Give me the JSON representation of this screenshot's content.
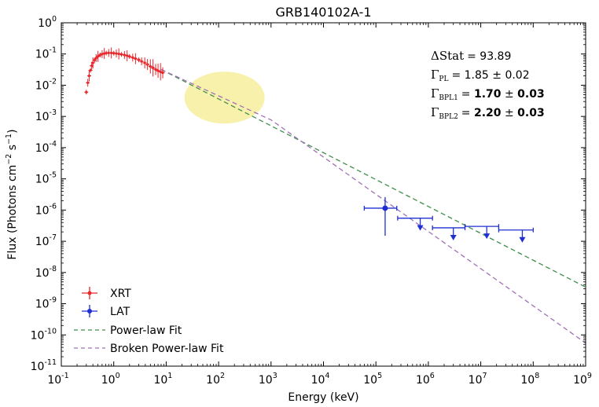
{
  "chart_data": {
    "type": "scatter",
    "title": "GRB140102A-1",
    "xlabel": "Energy (keV)",
    "ylabel": "Flux (Photons cm",
    "ylabel_exp1": "−2",
    "ylabel_mid": " s",
    "ylabel_exp2": "−1",
    "ylabel_end": ")",
    "x_scale": "log",
    "y_scale": "log",
    "xlim": [
      0.1,
      1000000000
    ],
    "ylim": [
      1e-11,
      1
    ],
    "x_ticks": [
      {
        "value": 0.1,
        "base": "10",
        "exp": "-1"
      },
      {
        "value": 1,
        "base": "10",
        "exp": "0"
      },
      {
        "value": 10,
        "base": "10",
        "exp": "1"
      },
      {
        "value": 100,
        "base": "10",
        "exp": "2"
      },
      {
        "value": 1000,
        "base": "10",
        "exp": "3"
      },
      {
        "value": 10000,
        "base": "10",
        "exp": "4"
      },
      {
        "value": 100000,
        "base": "10",
        "exp": "5"
      },
      {
        "value": 1000000,
        "base": "10",
        "exp": "6"
      },
      {
        "value": 10000000,
        "base": "10",
        "exp": "7"
      },
      {
        "value": 100000000,
        "base": "10",
        "exp": "8"
      },
      {
        "value": 1000000000,
        "base": "10",
        "exp": "9"
      }
    ],
    "y_ticks": [
      {
        "value": 1,
        "base": "10",
        "exp": "0"
      },
      {
        "value": 0.1,
        "base": "10",
        "exp": "-1"
      },
      {
        "value": 0.01,
        "base": "10",
        "exp": "-2"
      },
      {
        "value": 0.001,
        "base": "10",
        "exp": "-3"
      },
      {
        "value": 0.0001,
        "base": "10",
        "exp": "-4"
      },
      {
        "value": 1e-05,
        "base": "10",
        "exp": "-5"
      },
      {
        "value": 1e-06,
        "base": "10",
        "exp": "-6"
      },
      {
        "value": 1e-07,
        "base": "10",
        "exp": "-7"
      },
      {
        "value": 1e-08,
        "base": "10",
        "exp": "-8"
      },
      {
        "value": 1e-09,
        "base": "10",
        "exp": "-9"
      },
      {
        "value": 1e-10,
        "base": "10",
        "exp": "-10"
      },
      {
        "value": 1e-11,
        "base": "10",
        "exp": "-11"
      }
    ],
    "grid": false,
    "legend_position": "bottom-left",
    "legend": [
      {
        "label": "XRT",
        "marker": "point-errorbar",
        "color": "#e8262b"
      },
      {
        "label": "LAT",
        "marker": "point-errorbar",
        "color": "#1f2fd1"
      },
      {
        "label": "Power-law Fit",
        "marker": "dashed-line",
        "color": "#3d8f4a"
      },
      {
        "label": "Broken Power-law Fit",
        "marker": "dashed-line",
        "color": "#a070b8"
      }
    ],
    "annotations": {
      "delta_stat": {
        "symbol": "ΔStat",
        "value": "= 93.89"
      },
      "gamma_pl": {
        "symbol": "Γ",
        "sub": "PL",
        "value": "= 1.85 ± 0.02"
      },
      "gamma_bpl1": {
        "symbol": "Γ",
        "sub": "BPL1",
        "value": "= ",
        "bold_value": "1.70",
        "pm": " ± ",
        "bold_err": "0.03"
      },
      "gamma_bpl2": {
        "symbol": "Γ",
        "sub": "BPL2",
        "value": "= ",
        "bold_value": "2.20",
        "pm": " ± ",
        "bold_err": "0.03"
      }
    },
    "highlight_ellipse": {
      "center_x": 130,
      "center_y": 0.004,
      "color": "#f7ee9c"
    },
    "series": [
      {
        "name": "XRT",
        "color": "#e8262b",
        "x_range": [
          0.3,
          9
        ],
        "points": [
          [
            0.3,
            0.006
          ],
          [
            0.32,
            0.012
          ],
          [
            0.34,
            0.02
          ],
          [
            0.36,
            0.03
          ],
          [
            0.38,
            0.042
          ],
          [
            0.4,
            0.052
          ],
          [
            0.43,
            0.064
          ],
          [
            0.46,
            0.074
          ],
          [
            0.5,
            0.084
          ],
          [
            0.55,
            0.093
          ],
          [
            0.6,
            0.099
          ],
          [
            0.66,
            0.104
          ],
          [
            0.72,
            0.107
          ],
          [
            0.8,
            0.108
          ],
          [
            0.9,
            0.108
          ],
          [
            1.0,
            0.106
          ],
          [
            1.12,
            0.104
          ],
          [
            1.25,
            0.101
          ],
          [
            1.4,
            0.097
          ],
          [
            1.6,
            0.093
          ],
          [
            1.8,
            0.088
          ],
          [
            2.0,
            0.083
          ],
          [
            2.3,
            0.077
          ],
          [
            2.6,
            0.071
          ],
          [
            3.0,
            0.065
          ],
          [
            3.4,
            0.058
          ],
          [
            3.9,
            0.052
          ],
          [
            4.4,
            0.046
          ],
          [
            5.0,
            0.04
          ],
          [
            5.6,
            0.036
          ],
          [
            6.3,
            0.032
          ],
          [
            7.0,
            0.029
          ],
          [
            7.8,
            0.027
          ],
          [
            8.6,
            0.025
          ]
        ]
      },
      {
        "name": "LAT",
        "color": "#1f2fd1",
        "points": [
          {
            "x": 150000,
            "x_lo": 60000,
            "x_hi": 250000,
            "y": 1.15e-06,
            "y_lo": 1.5e-07,
            "y_hi": 2.6e-06,
            "upper_limit": false
          },
          {
            "x": 700000,
            "x_lo": 260000,
            "x_hi": 1200000,
            "y": 5.5e-07,
            "upper_limit": true
          },
          {
            "x": 3000000,
            "x_lo": 1200000,
            "x_hi": 5000000,
            "y": 2.7e-07,
            "upper_limit": true
          },
          {
            "x": 13000000,
            "x_lo": 5000000,
            "x_hi": 22000000,
            "y": 3e-07,
            "upper_limit": true
          },
          {
            "x": 62000000,
            "x_lo": 22000000,
            "x_hi": 100000000,
            "y": 2.3e-07,
            "upper_limit": true
          }
        ]
      },
      {
        "name": "Power-law Fit",
        "color": "#3d8f4a",
        "line": [
          [
            8,
            0.032
          ],
          [
            1000000000,
            3.4e-09
          ]
        ]
      },
      {
        "name": "Broken Power-law Fit",
        "color": "#a070b8",
        "line": [
          [
            8,
            0.032
          ],
          [
            1000,
            0.000775
          ],
          [
            1000000000,
            5.5e-11
          ]
        ]
      }
    ]
  }
}
